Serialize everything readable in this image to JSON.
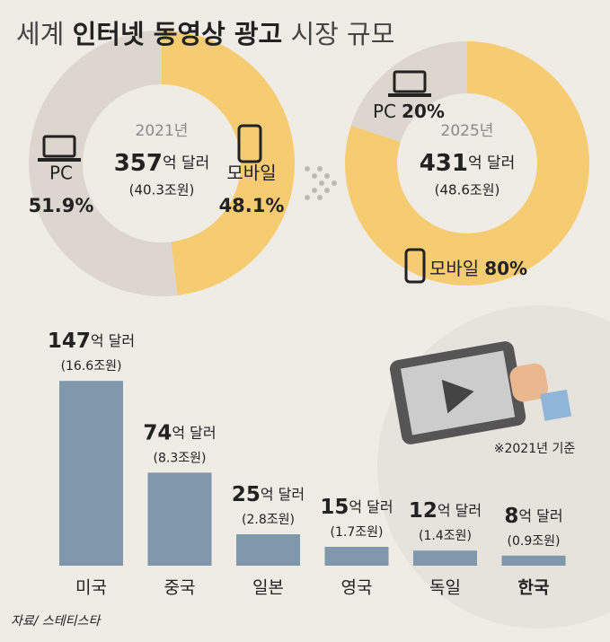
{
  "title": [
    "세계",
    "인터넷 동영상 광고",
    "시장 규모"
  ],
  "chart_data": [
    {
      "type": "donut",
      "year": "2021년",
      "total": 357,
      "total_unit": "억 달러",
      "total_krw": "(40.3조원)",
      "categories": [
        "모바일",
        "PC"
      ],
      "values": [
        48.1,
        51.9
      ],
      "value_labels": [
        "48.1%",
        "51.9%"
      ],
      "colors": [
        "#f6cc72",
        "#dcd6cf"
      ]
    },
    {
      "type": "donut",
      "year": "2025년",
      "total": 431,
      "total_unit": "억 달러",
      "total_krw": "(48.6조원)",
      "categories": [
        "모바일",
        "PC"
      ],
      "values": [
        80,
        20
      ],
      "value_labels": [
        "80%",
        "20%"
      ],
      "colors": [
        "#f6cc72",
        "#dcd6cf"
      ]
    },
    {
      "type": "bar",
      "categories": [
        "미국",
        "중국",
        "일본",
        "영국",
        "독일",
        "한국"
      ],
      "values": [
        147,
        74,
        25,
        15,
        12,
        8
      ],
      "unit": "억 달러",
      "secondary_labels": [
        "(16.6조원)",
        "(8.3조원)",
        "(2.8조원)",
        "(1.7조원)",
        "(1.4조원)",
        "(0.9조원)"
      ],
      "color": "#7f98ab",
      "highlight": "한국"
    }
  ],
  "note": "※2021년 기준",
  "source": "자료/ 스테티스타"
}
